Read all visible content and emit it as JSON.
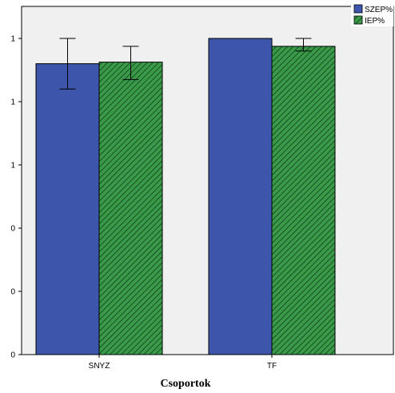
{
  "chart_data": {
    "type": "bar",
    "title": "",
    "xlabel": "Csoportok",
    "ylabel": "",
    "categories": [
      "SNYZ",
      "TF"
    ],
    "ytick_labels": [
      "0",
      "0",
      "0",
      "1",
      "1",
      "1"
    ],
    "ylim": [
      0,
      1.0
    ],
    "grid": false,
    "legend_position": "top-right",
    "series": [
      {
        "name": "SZEP%",
        "color": "#3d56ab",
        "pattern": "solid",
        "values": [
          0.92,
          1.0
        ],
        "error_low": [
          0.84,
          null
        ],
        "error_high": [
          1.0,
          null
        ]
      },
      {
        "name": "IEP%",
        "color": "#2e8b3e",
        "pattern": "diagonal-hatch",
        "values": [
          0.925,
          0.975
        ],
        "error_low": [
          0.87,
          0.96
        ],
        "error_high": [
          0.975,
          1.0
        ]
      }
    ]
  }
}
